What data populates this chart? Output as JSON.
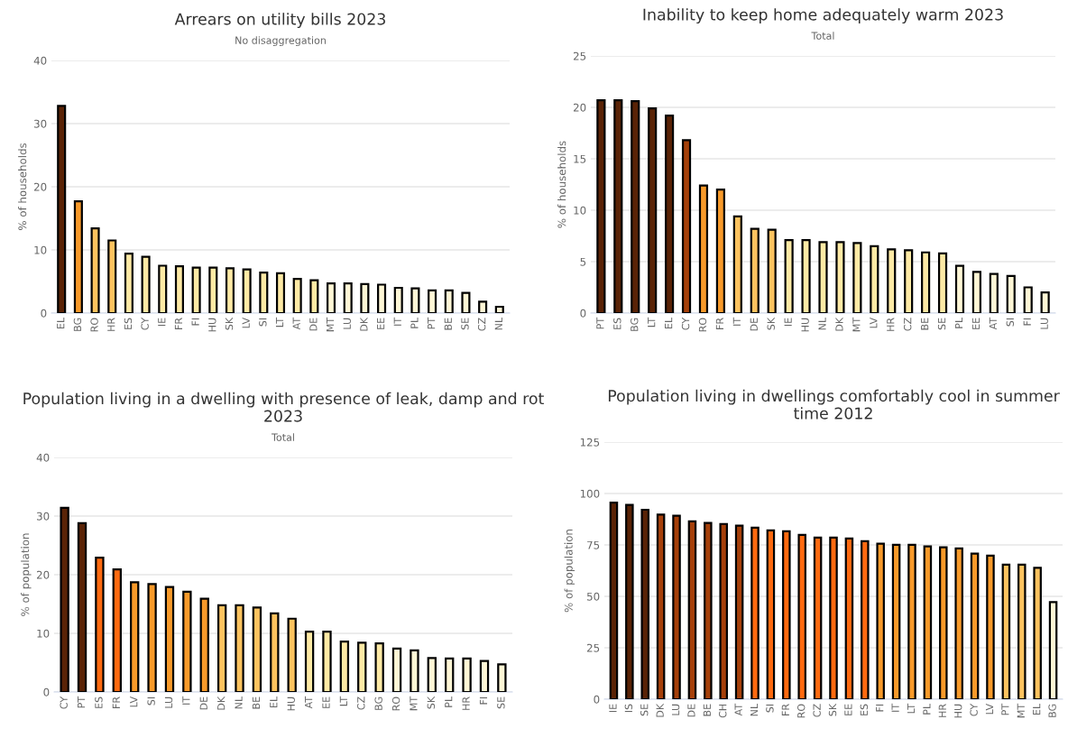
{
  "chart_data": [
    {
      "type": "bar",
      "title": "Arrears on utility bills 2023",
      "subtitle": "No disaggregation",
      "ylabel": "% of households",
      "ylim": [
        0,
        40
      ],
      "yticks": [
        0,
        10,
        20,
        30,
        40
      ],
      "grid": "y",
      "categories": [
        "EL",
        "BG",
        "RO",
        "HR",
        "ES",
        "CY",
        "IE",
        "FR",
        "FI",
        "HU",
        "SK",
        "LV",
        "SI",
        "LT",
        "AT",
        "DE",
        "MT",
        "LU",
        "DK",
        "EE",
        "IT",
        "PL",
        "PT",
        "BE",
        "SE",
        "CZ",
        "NL"
      ],
      "values": [
        32.8,
        17.7,
        13.4,
        11.5,
        9.4,
        8.9,
        7.5,
        7.4,
        7.2,
        7.2,
        7.1,
        6.9,
        6.4,
        6.3,
        5.4,
        5.2,
        4.7,
        4.7,
        4.6,
        4.5,
        4.0,
        3.9,
        3.6,
        3.6,
        3.2,
        1.8,
        1.0
      ],
      "colors": [
        "#5a2306",
        "#f89a2a",
        "#fdc35f",
        "#fdc35f",
        "#feeaa5",
        "#feeaa5",
        "#feeaa5",
        "#feeaa5",
        "#feeaa5",
        "#feeaa5",
        "#feeaa5",
        "#feeaa5",
        "#feeaa5",
        "#feeaa5",
        "#feeaa5",
        "#feeaa5",
        "#fff7d6",
        "#fff7d6",
        "#fff7d6",
        "#fff7d6",
        "#fff7d6",
        "#fff7d6",
        "#fff7d6",
        "#fff7d6",
        "#fff7d6",
        "#fff7d6",
        "#fff7d6"
      ]
    },
    {
      "type": "bar",
      "title": "Inability to keep home adequately warm 2023",
      "subtitle": "Total",
      "ylabel": "% of households",
      "ylim": [
        0,
        25
      ],
      "yticks": [
        0,
        5,
        10,
        15,
        20,
        25
      ],
      "grid": "y",
      "categories": [
        "PT",
        "ES",
        "BG",
        "LT",
        "EL",
        "CY",
        "RO",
        "FR",
        "IT",
        "DE",
        "SK",
        "IE",
        "HU",
        "NL",
        "DK",
        "MT",
        "LV",
        "HR",
        "CZ",
        "BE",
        "SE",
        "PL",
        "EE",
        "AT",
        "SI",
        "FI",
        "LU"
      ],
      "values": [
        20.7,
        20.7,
        20.6,
        19.9,
        19.2,
        16.8,
        12.4,
        12.0,
        9.4,
        8.2,
        8.1,
        7.1,
        7.1,
        6.9,
        6.9,
        6.8,
        6.5,
        6.2,
        6.1,
        5.9,
        5.8,
        4.6,
        4.0,
        3.8,
        3.6,
        2.5,
        2.0
      ],
      "colors": [
        "#5a2306",
        "#5a2306",
        "#5a2306",
        "#5a2306",
        "#5a2306",
        "#a6400a",
        "#f89a2a",
        "#f89a2a",
        "#fdc35f",
        "#fdc35f",
        "#fdc35f",
        "#feeaa5",
        "#feeaa5",
        "#feeaa5",
        "#feeaa5",
        "#feeaa5",
        "#feeaa5",
        "#feeaa5",
        "#feeaa5",
        "#feeaa5",
        "#feeaa5",
        "#fff7d6",
        "#fff7d6",
        "#fff7d6",
        "#fff7d6",
        "#fff7d6",
        "#fff7d6"
      ]
    },
    {
      "type": "bar",
      "title": "Population living in a dwelling with presence of leak, damp and rot 2023",
      "subtitle": "Total",
      "ylabel": "% of population",
      "ylim": [
        0,
        40
      ],
      "yticks": [
        0,
        10,
        20,
        30,
        40
      ],
      "grid": "y",
      "categories": [
        "CY",
        "PT",
        "ES",
        "FR",
        "LV",
        "SI",
        "LU",
        "IT",
        "DE",
        "DK",
        "NL",
        "BE",
        "EL",
        "HU",
        "AT",
        "EE",
        "LT",
        "CZ",
        "BG",
        "RO",
        "MT",
        "SK",
        "PL",
        "HR",
        "FI",
        "SE"
      ],
      "values": [
        31.4,
        28.8,
        22.9,
        20.9,
        18.7,
        18.4,
        17.9,
        17.1,
        15.9,
        14.8,
        14.8,
        14.4,
        13.4,
        12.5,
        10.3,
        10.3,
        8.6,
        8.4,
        8.3,
        7.4,
        7.1,
        5.8,
        5.7,
        5.7,
        5.3,
        4.7
      ],
      "colors": [
        "#5a2306",
        "#5a2306",
        "#ff6a10",
        "#ff6a10",
        "#f89a2a",
        "#f89a2a",
        "#f89a2a",
        "#f89a2a",
        "#f89a2a",
        "#fdc35f",
        "#fdc35f",
        "#fdc35f",
        "#fdc35f",
        "#fdc35f",
        "#feeaa5",
        "#feeaa5",
        "#feeaa5",
        "#feeaa5",
        "#feeaa5",
        "#fff7d6",
        "#fff7d6",
        "#fff7d6",
        "#fff7d6",
        "#fff7d6",
        "#fff7d6",
        "#fff7d6"
      ]
    },
    {
      "type": "bar",
      "title": "Population living in dwellings comfortably cool in summer time 2012",
      "ylabel": "% of population",
      "ylim": [
        0,
        125
      ],
      "yticks": [
        0,
        25,
        50,
        75,
        100,
        125
      ],
      "grid": "y",
      "categories": [
        "IE",
        "IS",
        "SE",
        "DK",
        "LU",
        "DE",
        "BE",
        "CH",
        "AT",
        "NL",
        "SI",
        "FR",
        "RO",
        "CZ",
        "SK",
        "EE",
        "ES",
        "FI",
        "IT",
        "LT",
        "PL",
        "HR",
        "HU",
        "CY",
        "LV",
        "PT",
        "MT",
        "EL",
        "BG"
      ],
      "values": [
        95.6,
        94.5,
        92.1,
        89.7,
        89.2,
        86.5,
        85.7,
        85.2,
        84.4,
        83.4,
        82.1,
        81.6,
        79.9,
        78.6,
        78.6,
        78.1,
        76.8,
        75.6,
        75.1,
        75.1,
        74.3,
        73.8,
        73.3,
        70.8,
        69.8,
        65.4,
        65.4,
        63.9,
        47.2
      ],
      "colors": [
        "#5a2306",
        "#5a2306",
        "#5a2306",
        "#a6400a",
        "#a6400a",
        "#a6400a",
        "#a6400a",
        "#a6400a",
        "#a6400a",
        "#ff6a10",
        "#ff6a10",
        "#ff6a10",
        "#ff6a10",
        "#ff6a10",
        "#ff6a10",
        "#ff6a10",
        "#ff6a10",
        "#f89a2a",
        "#f89a2a",
        "#f89a2a",
        "#f89a2a",
        "#f89a2a",
        "#f89a2a",
        "#f89a2a",
        "#f89a2a",
        "#fdc35f",
        "#fdc35f",
        "#fdc35f",
        "#fff7d6"
      ]
    }
  ]
}
